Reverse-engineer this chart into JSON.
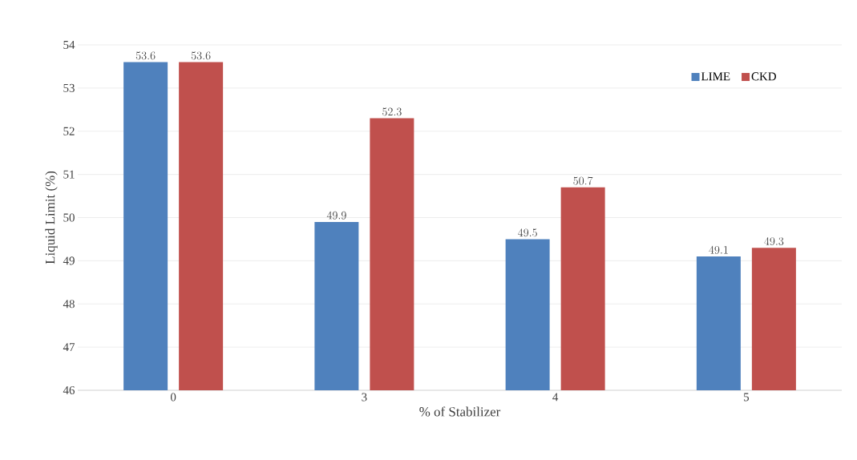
{
  "chart_data": {
    "type": "bar",
    "xlabel": "% of Stabilizer",
    "ylabel": "Liquid Limit (%)",
    "categories": [
      "0",
      "3",
      "4",
      "5"
    ],
    "series": [
      {
        "name": "LIME",
        "color": "#4f81bd",
        "values": [
          53.6,
          49.9,
          49.5,
          49.1
        ]
      },
      {
        "name": "CKD",
        "color": "#c0504d",
        "values": [
          53.6,
          52.3,
          50.7,
          49.3
        ]
      }
    ],
    "ylim": [
      46,
      54
    ],
    "yticks": [
      46,
      47,
      48,
      49,
      50,
      51,
      52,
      53,
      54
    ],
    "grid": "y",
    "legend": "top right",
    "data_labels": true
  }
}
